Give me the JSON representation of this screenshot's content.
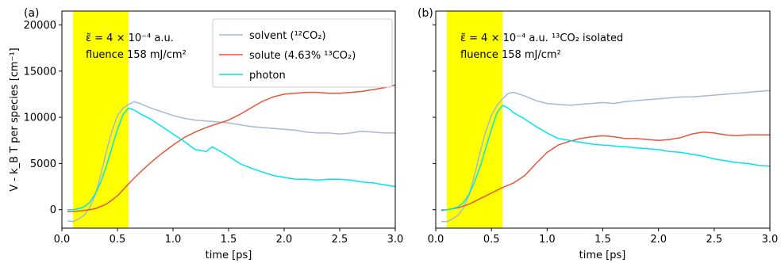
{
  "chart_data": [
    {
      "type": "line",
      "panel_label": "(a)",
      "xlabel": "time [ps]",
      "ylabel": "V - k_B T per species [cm⁻¹]",
      "xlim": [
        0.0,
        3.0
      ],
      "ylim": [
        -2000,
        21500
      ],
      "xticks": [
        "0.0",
        "0.5",
        "1.0",
        "1.5",
        "2.0",
        "2.5",
        "3.0"
      ],
      "yticks": [
        "0",
        "5000",
        "10000",
        "15000",
        "20000"
      ],
      "shaded_region": {
        "x_start": 0.1,
        "x_end": 0.6,
        "color": "#ffff00"
      },
      "annotation": [
        "ε̃ = 4 × 10⁻⁴ a.u.",
        "fluence 158 mJ/cm²"
      ],
      "legend": {
        "placement": "top-center",
        "entries": [
          "solvent (¹²CO₂)",
          "solute (4.63% ¹³CO₂)",
          "photon"
        ]
      },
      "series": [
        {
          "name": "solvent (¹²CO₂)",
          "color": "#a4b9d6",
          "x": [
            0.05,
            0.1,
            0.15,
            0.2,
            0.25,
            0.3,
            0.35,
            0.4,
            0.45,
            0.5,
            0.55,
            0.6,
            0.65,
            0.7,
            0.8,
            0.9,
            1.0,
            1.1,
            1.2,
            1.3,
            1.4,
            1.5,
            1.6,
            1.7,
            1.8,
            1.9,
            2.0,
            2.1,
            2.2,
            2.3,
            2.4,
            2.5,
            2.6,
            2.7,
            2.8,
            2.9,
            3.0
          ],
          "y": [
            -1200,
            -1300,
            -1000,
            -600,
            200,
            1600,
            3800,
            6300,
            8500,
            10200,
            11000,
            11400,
            11700,
            11500,
            11000,
            10600,
            10200,
            9900,
            9700,
            9600,
            9500,
            9400,
            9200,
            9000,
            8900,
            8800,
            8700,
            8600,
            8400,
            8300,
            8300,
            8200,
            8300,
            8500,
            8400,
            8300,
            8300
          ]
        },
        {
          "name": "solute (4.63% ¹³CO₂)",
          "color": "#e8563a",
          "x": [
            0.05,
            0.1,
            0.2,
            0.3,
            0.4,
            0.5,
            0.6,
            0.7,
            0.8,
            0.9,
            1.0,
            1.1,
            1.2,
            1.3,
            1.4,
            1.5,
            1.6,
            1.7,
            1.8,
            1.9,
            2.0,
            2.1,
            2.2,
            2.3,
            2.4,
            2.5,
            2.6,
            2.7,
            2.8,
            2.9,
            3.0
          ],
          "y": [
            -200,
            -200,
            -100,
            100,
            600,
            1500,
            2800,
            4000,
            5100,
            6100,
            7000,
            7800,
            8400,
            8900,
            9300,
            9700,
            10300,
            11000,
            11700,
            12200,
            12500,
            12600,
            12700,
            12700,
            12600,
            12600,
            12700,
            12800,
            13000,
            13200,
            13500
          ]
        },
        {
          "name": "photon",
          "color": "#00e5ee",
          "x": [
            0.05,
            0.1,
            0.15,
            0.2,
            0.25,
            0.3,
            0.35,
            0.4,
            0.45,
            0.5,
            0.55,
            0.6,
            0.65,
            0.7,
            0.8,
            0.9,
            1.0,
            1.1,
            1.2,
            1.3,
            1.35,
            1.4,
            1.5,
            1.6,
            1.7,
            1.8,
            1.9,
            2.0,
            2.1,
            2.2,
            2.3,
            2.4,
            2.5,
            2.6,
            2.7,
            2.8,
            2.9,
            3.0
          ],
          "y": [
            0,
            0,
            100,
            300,
            800,
            1700,
            3000,
            4700,
            6700,
            8700,
            10300,
            11000,
            10800,
            10400,
            9800,
            9000,
            8200,
            7400,
            6500,
            6300,
            6800,
            6500,
            5800,
            5000,
            4500,
            4100,
            3700,
            3500,
            3300,
            3300,
            3200,
            3300,
            3300,
            3200,
            3000,
            2900,
            2700,
            2500
          ]
        }
      ]
    },
    {
      "type": "line",
      "panel_label": "(b)",
      "xlabel": "time [ps]",
      "xlim": [
        0.0,
        3.0
      ],
      "ylim": [
        -2000,
        21500
      ],
      "xticks": [
        "0.0",
        "0.5",
        "1.0",
        "1.5",
        "2.0",
        "2.5",
        "3.0"
      ],
      "shaded_region": {
        "x_start": 0.1,
        "x_end": 0.6,
        "color": "#ffff00"
      },
      "annotation": [
        "ε̃ = 4 × 10⁻⁴ a.u. ¹³CO₂ isolated",
        "fluence 158 mJ/cm²"
      ],
      "series": [
        {
          "color": "#a4b9d6",
          "x": [
            0.05,
            0.1,
            0.15,
            0.2,
            0.25,
            0.3,
            0.35,
            0.4,
            0.45,
            0.5,
            0.55,
            0.6,
            0.65,
            0.7,
            0.8,
            0.9,
            1.0,
            1.1,
            1.2,
            1.3,
            1.4,
            1.5,
            1.6,
            1.7,
            1.8,
            1.9,
            2.0,
            2.1,
            2.2,
            2.3,
            2.4,
            2.5,
            2.6,
            2.7,
            2.8,
            2.9,
            3.0
          ],
          "y": [
            -1300,
            -1300,
            -1000,
            -600,
            200,
            1600,
            3800,
            6300,
            8500,
            10200,
            11300,
            12000,
            12600,
            12700,
            12300,
            11800,
            11500,
            11400,
            11300,
            11400,
            11500,
            11600,
            11500,
            11700,
            11800,
            11900,
            12000,
            12100,
            12200,
            12200,
            12300,
            12400,
            12500,
            12600,
            12700,
            12800,
            12900
          ]
        },
        {
          "color": "#e8563a",
          "x": [
            0.05,
            0.1,
            0.2,
            0.3,
            0.4,
            0.5,
            0.6,
            0.7,
            0.8,
            0.9,
            1.0,
            1.1,
            1.2,
            1.3,
            1.4,
            1.5,
            1.6,
            1.7,
            1.8,
            1.9,
            2.0,
            2.1,
            2.2,
            2.3,
            2.4,
            2.5,
            2.6,
            2.7,
            2.8,
            2.9,
            3.0
          ],
          "y": [
            -100,
            0,
            200,
            600,
            1200,
            1800,
            2400,
            2900,
            3700,
            5000,
            6200,
            7000,
            7400,
            7700,
            7900,
            8000,
            7900,
            7700,
            7700,
            7600,
            7500,
            7600,
            7800,
            8200,
            8400,
            8300,
            8100,
            8000,
            8100,
            8100,
            8100
          ]
        },
        {
          "color": "#00e5ee",
          "x": [
            0.05,
            0.1,
            0.15,
            0.2,
            0.25,
            0.3,
            0.35,
            0.4,
            0.45,
            0.5,
            0.55,
            0.6,
            0.65,
            0.7,
            0.8,
            0.9,
            1.0,
            1.1,
            1.2,
            1.3,
            1.4,
            1.5,
            1.6,
            1.7,
            1.8,
            1.9,
            2.0,
            2.1,
            2.2,
            2.3,
            2.4,
            2.5,
            2.6,
            2.7,
            2.8,
            2.9,
            3.0
          ],
          "y": [
            0,
            0,
            100,
            300,
            800,
            1700,
            3000,
            4700,
            6700,
            8700,
            10500,
            11300,
            11000,
            10500,
            9800,
            9000,
            8300,
            7700,
            7500,
            7300,
            7100,
            7000,
            6900,
            6800,
            6700,
            6600,
            6500,
            6300,
            6200,
            6000,
            5800,
            5500,
            5300,
            5100,
            5000,
            4800,
            4700
          ]
        }
      ]
    }
  ]
}
